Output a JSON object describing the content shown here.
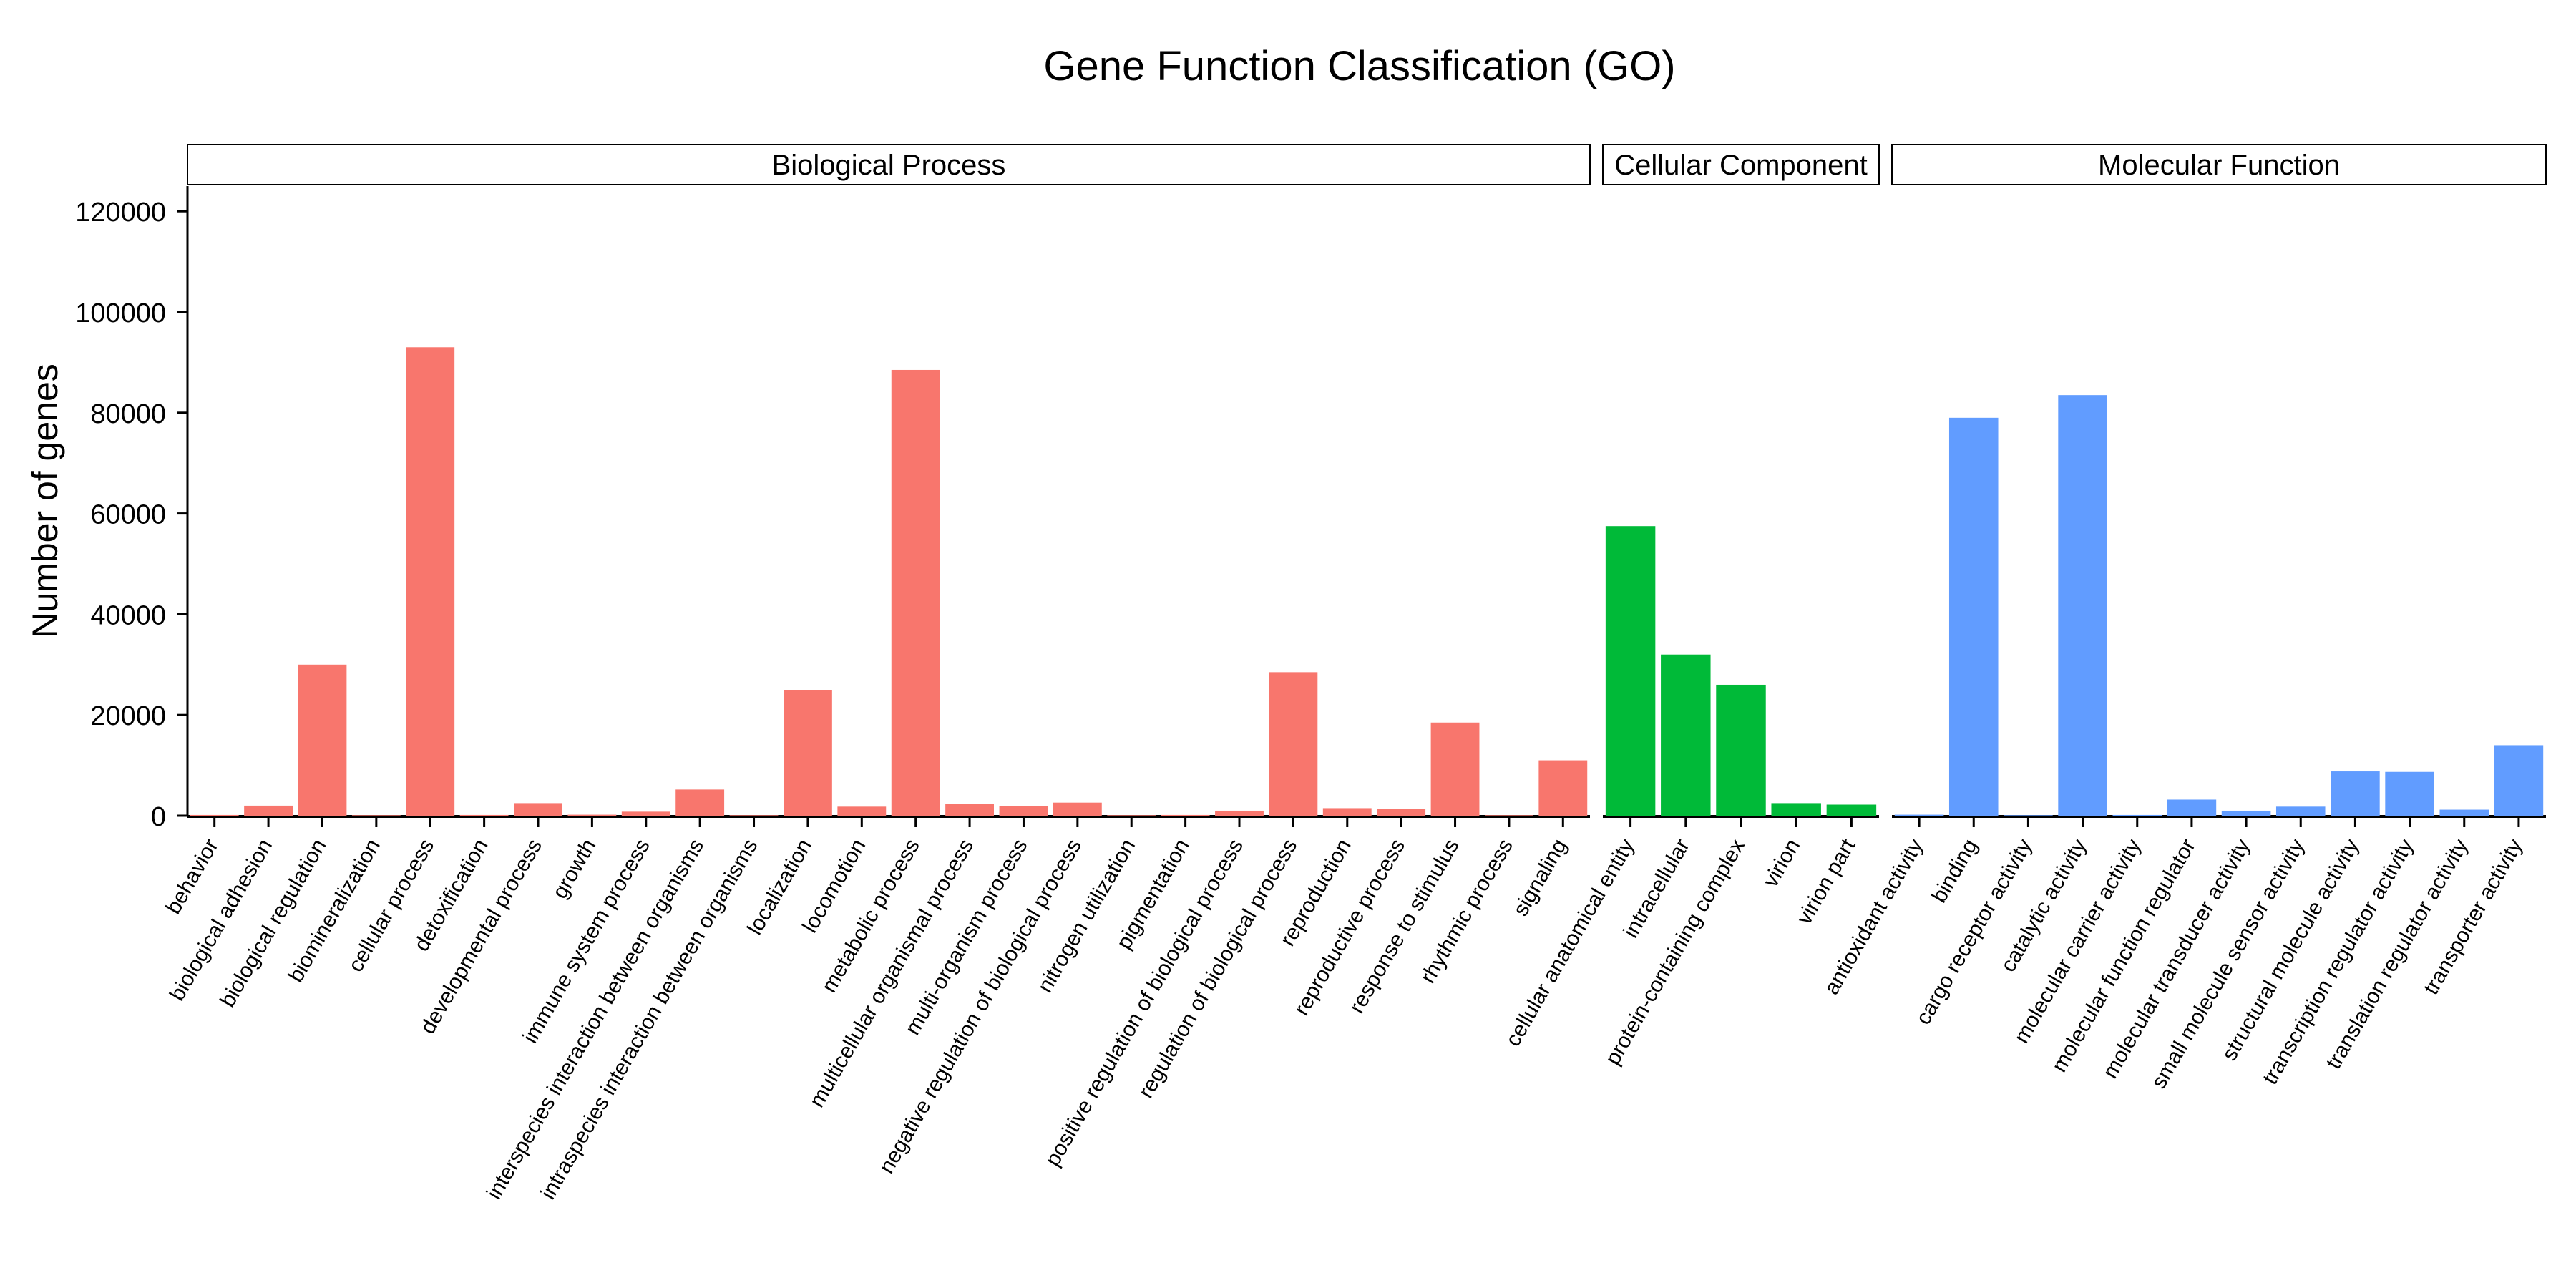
{
  "chart_data": {
    "type": "bar",
    "title": "Gene Function Classification (GO)",
    "ylabel": "Number of genes",
    "ylim": [
      0,
      125000
    ],
    "yticks": [
      0,
      20000,
      40000,
      60000,
      80000,
      100000,
      120000
    ],
    "grid": false,
    "legend": "none",
    "panels": [
      {
        "name": "Biological Process",
        "color": "#F8766D",
        "categories": [
          "behavior",
          "biological adhesion",
          "biological regulation",
          "biomineralization",
          "cellular process",
          "detoxification",
          "developmental process",
          "growth",
          "immune system process",
          "interspecies interaction between organisms",
          "intraspecies interaction between organisms",
          "localization",
          "locomotion",
          "metabolic process",
          "multicellular organismal process",
          "multi-organism process",
          "negative regulation of biological process",
          "nitrogen utilization",
          "pigmentation",
          "positive regulation of biological process",
          "regulation of biological process",
          "reproduction",
          "reproductive process",
          "response to stimulus",
          "rhythmic process",
          "signaling"
        ],
        "values": [
          150,
          2000,
          30000,
          100,
          93000,
          150,
          2500,
          200,
          800,
          5200,
          100,
          25000,
          1800,
          88500,
          2400,
          1900,
          2600,
          100,
          150,
          1000,
          28500,
          1500,
          1300,
          18500,
          100,
          11000
        ]
      },
      {
        "name": "Cellular Component",
        "color": "#00BA38",
        "categories": [
          "cellular anatomical entity",
          "intracellular",
          "protein-containing complex",
          "virion",
          "virion part"
        ],
        "values": [
          57500,
          32000,
          26000,
          2500,
          2200
        ]
      },
      {
        "name": "Molecular Function",
        "color": "#619CFF",
        "categories": [
          "antioxidant activity",
          "binding",
          "cargo receptor activity",
          "catalytic activity",
          "molecular carrier activity",
          "molecular function regulator",
          "molecular transducer activity",
          "small molecule sensor activity",
          "structural molecule activity",
          "transcription regulator activity",
          "translation regulator activity",
          "transporter activity"
        ],
        "values": [
          200,
          79000,
          100,
          83500,
          150,
          3200,
          1000,
          1800,
          8800,
          8700,
          1200,
          14000
        ]
      }
    ]
  }
}
